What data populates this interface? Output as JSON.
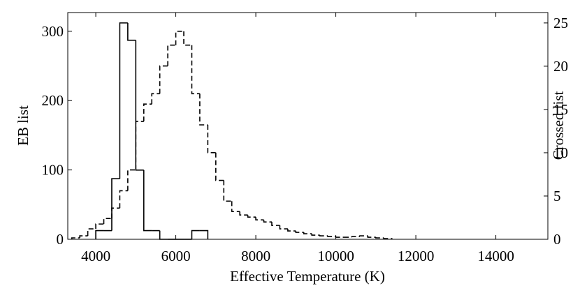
{
  "chart_data": {
    "type": "histogram",
    "x_label": "Effective Temperature (K)",
    "y_label": "EB list",
    "y2_label": "Crossed list",
    "xlim": [
      3300,
      15300
    ],
    "xticks": [
      4000,
      6000,
      8000,
      10000,
      12000,
      14000
    ],
    "ylim": [
      0,
      327
    ],
    "yticks": [
      0,
      100,
      200,
      300
    ],
    "y2lim": [
      0,
      26.2
    ],
    "y2ticks": [
      0,
      5,
      10,
      15,
      20,
      25
    ],
    "series": [
      {
        "name": "EB list",
        "color": "#000000",
        "style": "dashed",
        "bins": [
          3400,
          3600,
          3800,
          4000,
          4200,
          4400,
          4600,
          4800,
          5000,
          5200,
          5400,
          5600,
          5800,
          6000,
          6200,
          6400,
          6600,
          6800,
          7000,
          7200,
          7400,
          7600,
          7800,
          8000,
          8200,
          8400,
          8600,
          8800,
          9000,
          9200,
          9400,
          9600,
          9800,
          10000,
          10200,
          10400,
          10600,
          10800,
          11000,
          11200,
          11400
        ],
        "values": [
          2,
          5,
          15,
          22,
          30,
          45,
          70,
          100,
          170,
          195,
          210,
          250,
          280,
          300,
          280,
          210,
          165,
          125,
          85,
          55,
          40,
          35,
          32,
          28,
          25,
          20,
          15,
          12,
          10,
          8,
          6,
          5,
          4,
          3,
          3,
          4,
          5,
          3,
          2,
          1
        ]
      },
      {
        "name": "Crossed list",
        "color": "#000000",
        "style": "solid",
        "axis": "y2",
        "bins": [
          4000,
          4200,
          4400,
          4600,
          4800,
          5000,
          5200,
          5400,
          5600,
          5800,
          6000,
          6200,
          6400,
          6600,
          6800
        ],
        "values": [
          1,
          1,
          7,
          25,
          23,
          8,
          1,
          1,
          0,
          0,
          0,
          0,
          1,
          1
        ]
      }
    ]
  }
}
